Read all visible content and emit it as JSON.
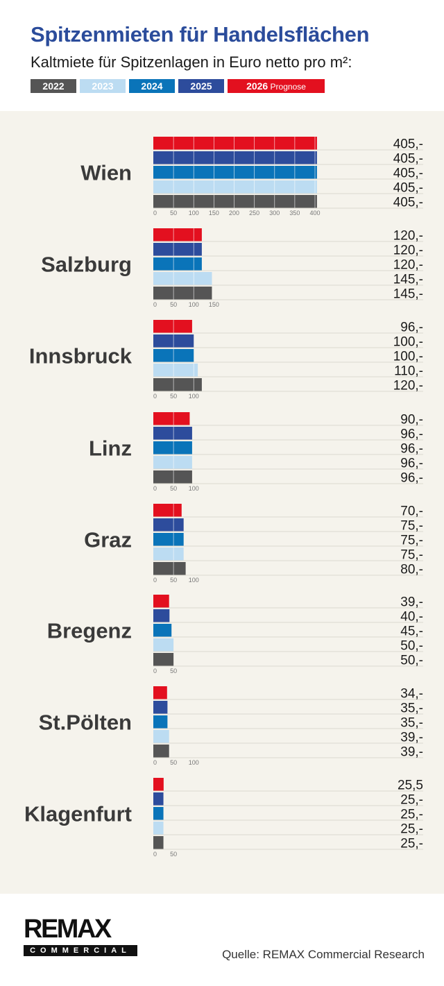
{
  "title": "Spitzenmieten für Handelsflächen",
  "subtitle": "Kaltmiete für Spitzenlagen in Euro netto pro m²:",
  "legend": [
    {
      "label": "2022",
      "suffix": "",
      "color": "#555555"
    },
    {
      "label": "2023",
      "suffix": "",
      "color": "#bcdcf2"
    },
    {
      "label": "2024",
      "suffix": "",
      "color": "#0a74b9"
    },
    {
      "label": "2025",
      "suffix": "",
      "color": "#2d4c9c"
    },
    {
      "label": "2026",
      "suffix": "Prognose",
      "color": "#e3101f"
    }
  ],
  "chart_data": {
    "type": "bar",
    "orientation": "horizontal",
    "series_order": [
      "2026 Prognose",
      "2025",
      "2024",
      "2023",
      "2022"
    ],
    "colors": [
      "#e3101f",
      "#2d4c9c",
      "#0a74b9",
      "#bcdcf2",
      "#555555"
    ],
    "groups": [
      {
        "city": "Wien",
        "values": [
          405,
          405,
          405,
          405,
          405
        ],
        "labels": [
          "405,-",
          "405,-",
          "405,-",
          "405,-",
          "405,-"
        ],
        "ticks": [
          0,
          50,
          100,
          150,
          200,
          250,
          300,
          350,
          400
        ]
      },
      {
        "city": "Salzburg",
        "values": [
          120,
          120,
          120,
          145,
          145
        ],
        "labels": [
          "120,-",
          "120,-",
          "120,-",
          "145,-",
          "145,-"
        ],
        "ticks": [
          0,
          50,
          100,
          150
        ]
      },
      {
        "city": "Innsbruck",
        "values": [
          96,
          100,
          100,
          110,
          120
        ],
        "labels": [
          "96,-",
          "100,-",
          "100,-",
          "110,-",
          "120,-"
        ],
        "ticks": [
          0,
          50,
          100
        ]
      },
      {
        "city": "Linz",
        "values": [
          90,
          96,
          96,
          96,
          96
        ],
        "labels": [
          "90,-",
          "96,-",
          "96,-",
          "96,-",
          "96,-"
        ],
        "ticks": [
          0,
          50,
          100
        ]
      },
      {
        "city": "Graz",
        "values": [
          70,
          75,
          75,
          75,
          80
        ],
        "labels": [
          "70,-",
          "75,-",
          "75,-",
          "75,-",
          "80,-"
        ],
        "ticks": [
          0,
          50,
          100
        ]
      },
      {
        "city": "Bregenz",
        "values": [
          39,
          40,
          45,
          50,
          50
        ],
        "labels": [
          "39,-",
          "40,-",
          "45,-",
          "50,-",
          "50,-"
        ],
        "ticks": [
          0,
          50
        ]
      },
      {
        "city": "St.Pölten",
        "values": [
          34,
          35,
          35,
          39,
          39
        ],
        "labels": [
          "34,-",
          "35,-",
          "35,-",
          "39,-",
          "39,-"
        ],
        "ticks": [
          0,
          50,
          100
        ]
      },
      {
        "city": "Klagenfurt",
        "values": [
          25.5,
          25,
          25,
          25,
          25
        ],
        "labels": [
          "25,5",
          "25,-",
          "25,-",
          "25,-",
          "25,-"
        ],
        "ticks": [
          0,
          50
        ]
      }
    ]
  },
  "footer": {
    "logo_main": "REMAX",
    "logo_sub": "COMMERCIAL",
    "source": "Quelle: REMAX Commercial Research"
  }
}
